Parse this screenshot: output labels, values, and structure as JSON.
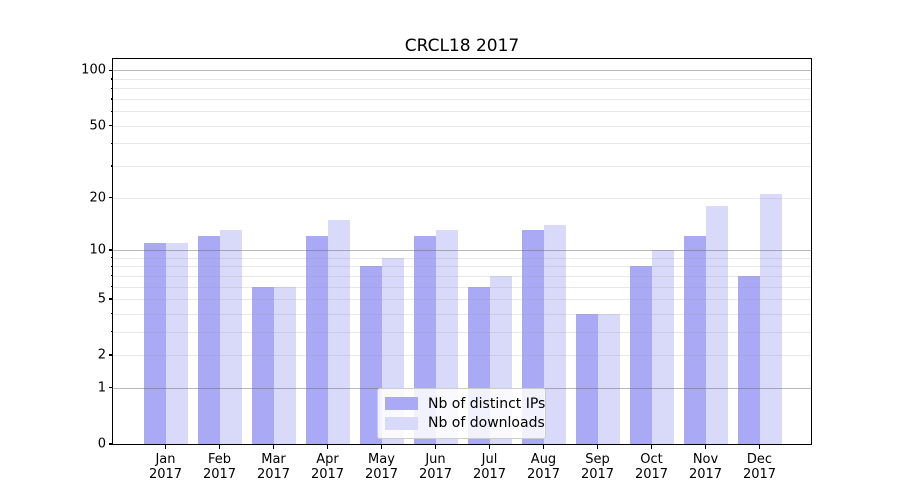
{
  "chart_data": {
    "type": "bar",
    "title": "CRCL18 2017",
    "categories": [
      "Jan 2017",
      "Feb 2017",
      "Mar 2017",
      "Apr 2017",
      "May 2017",
      "Jun 2017",
      "Jul 2017",
      "Aug 2017",
      "Sep 2017",
      "Oct 2017",
      "Nov 2017",
      "Dec 2017"
    ],
    "series": [
      {
        "name": "Nb of distinct IPs",
        "color": "#a9a9f6",
        "values": [
          11,
          12,
          6,
          12,
          8,
          12,
          6,
          13,
          4,
          8,
          12,
          7
        ]
      },
      {
        "name": "Nb of downloads",
        "color": "#d9d9f9",
        "values": [
          11,
          13,
          6,
          15,
          9,
          13,
          7,
          14,
          4,
          10,
          18,
          21
        ]
      }
    ],
    "xlabel": "",
    "ylabel": "",
    "yscale": "log1p",
    "ylim": [
      0,
      115
    ],
    "y_ticks": [
      0,
      1,
      2,
      5,
      10,
      20,
      50,
      100
    ],
    "y_tick_labels": [
      "0",
      "1",
      "2",
      "5",
      "10",
      "20",
      "50",
      "100"
    ],
    "y_major_gridlines": [
      1,
      10,
      100
    ],
    "y_minor_gridlines": [
      2,
      3,
      4,
      5,
      6,
      7,
      8,
      9,
      20,
      30,
      40,
      50,
      60,
      70,
      80,
      90
    ],
    "grid": true,
    "legend_position": "lower center",
    "axis_color": "#000000",
    "major_grid_color": "#b9b9b9",
    "minor_grid_color": "#e8e8e8"
  }
}
